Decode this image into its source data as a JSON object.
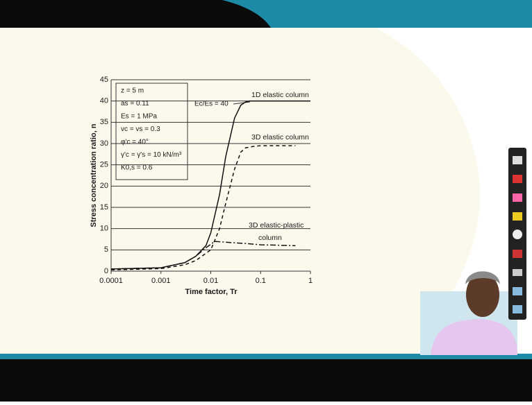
{
  "chart_data": {
    "type": "line",
    "y_label": "Stress concentration ratio, n",
    "x_label": "Time factor, Tr",
    "xlog": true,
    "xlim": [
      0.0001,
      1
    ],
    "xticks": [
      0.0001,
      0.001,
      0.01,
      0.1,
      1
    ],
    "ylim": [
      0,
      45
    ],
    "yticks": [
      0,
      5,
      10,
      15,
      20,
      25,
      30,
      35,
      40,
      45
    ],
    "grid": true,
    "parameters": [
      "z = 5 m",
      "as = 0.11",
      "Es = 1 MPa",
      "vc = vs = 0.3",
      "φ'c = 40°",
      "γ'c = γ's = 10 kN/m³",
      "K0,s = 0.6"
    ],
    "modulus_ratio": "Ec/Es = 40",
    "series": [
      {
        "name": "1D elastic column",
        "color": "#111111",
        "dash": "none",
        "x": [
          0.0001,
          0.001,
          0.003,
          0.005,
          0.008,
          0.01,
          0.015,
          0.02,
          0.03,
          0.04,
          0.05,
          0.06,
          0.1,
          1
        ],
        "values": [
          0.5,
          0.8,
          2,
          3.5,
          6,
          9,
          18,
          27,
          36,
          39,
          39.8,
          40,
          40,
          40
        ]
      },
      {
        "name": "3D elastic column",
        "color": "#111111",
        "dash": "5,4",
        "x": [
          0.0001,
          0.001,
          0.003,
          0.005,
          0.01,
          0.015,
          0.02,
          0.03,
          0.04,
          0.05,
          0.07,
          0.1,
          0.5
        ],
        "values": [
          0.3,
          0.6,
          1.5,
          2.5,
          5,
          10,
          16,
          24,
          28,
          29,
          29.3,
          29.5,
          29.5
        ]
      },
      {
        "name": [
          "3D elastic-plastic",
          "column"
        ],
        "color": "#111111",
        "dash": "8,3,2,3",
        "x": [
          0.0001,
          0.001,
          0.003,
          0.005,
          0.008,
          0.012,
          0.02,
          0.05,
          0.1,
          0.5
        ],
        "values": [
          0.5,
          0.8,
          2,
          3.5,
          5.5,
          7,
          6.8,
          6.5,
          6.2,
          6
        ]
      }
    ]
  }
}
